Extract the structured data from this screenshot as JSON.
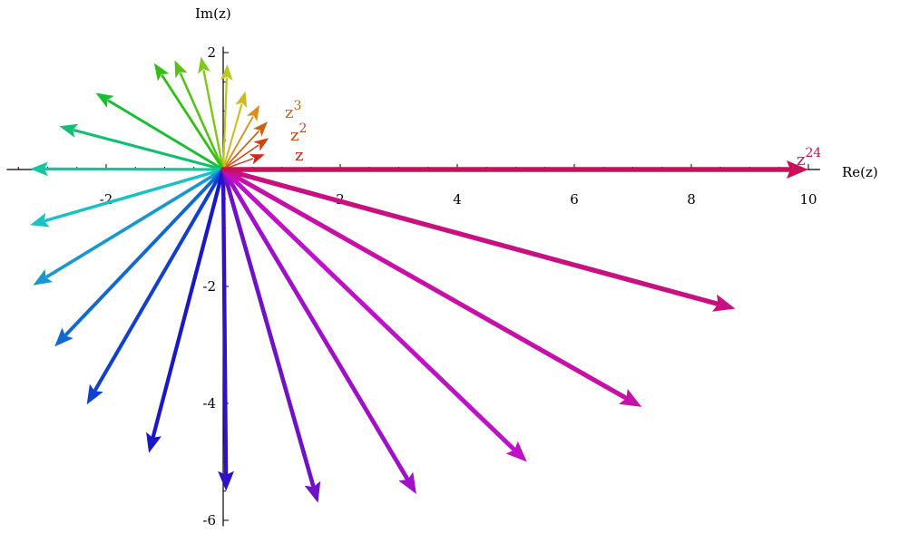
{
  "chart_data": {
    "type": "vector",
    "xlabel": "Re(z)",
    "ylabel": "Im(z)",
    "xlim": [
      -3.7,
      10.2
    ],
    "ylim": [
      -6.1,
      2.1
    ],
    "x_ticks": [
      {
        "value": -2,
        "label": "-2"
      },
      {
        "value": 2,
        "label": "2"
      },
      {
        "value": 4,
        "label": "4"
      },
      {
        "value": 6,
        "label": "6"
      },
      {
        "value": 8,
        "label": "8"
      },
      {
        "value": 10,
        "label": "10"
      }
    ],
    "y_ticks": [
      {
        "value": 2,
        "label": "2"
      },
      {
        "value": -2,
        "label": "-2"
      },
      {
        "value": -4,
        "label": "-4"
      },
      {
        "value": -6,
        "label": "-6"
      }
    ],
    "origin": [
      0,
      0
    ],
    "vectors": [
      {
        "x": 0.71,
        "y": 0.26,
        "color": "#cc2a1a",
        "label": "z"
      },
      {
        "x": 0.78,
        "y": 0.54,
        "color": "#cc4410",
        "label": "z2"
      },
      {
        "x": 0.76,
        "y": 0.82,
        "color": "#d06010",
        "label": "z3"
      },
      {
        "x": 0.62,
        "y": 1.1,
        "color": "#d89018",
        "label": ""
      },
      {
        "x": 0.38,
        "y": 1.34,
        "color": "#d0b820",
        "label": ""
      },
      {
        "x": 0.07,
        "y": 1.8,
        "color": "#bcc820",
        "label": ""
      },
      {
        "x": -0.38,
        "y": 1.93,
        "color": "#80c818",
        "label": ""
      },
      {
        "x": -0.83,
        "y": 1.87,
        "color": "#58c018",
        "label": ""
      },
      {
        "x": -1.18,
        "y": 1.82,
        "color": "#30c010",
        "label": ""
      },
      {
        "x": -2.18,
        "y": 1.31,
        "color": "#18c030",
        "label": ""
      },
      {
        "x": -2.8,
        "y": 0.74,
        "color": "#10c070",
        "label": ""
      },
      {
        "x": -3.3,
        "y": 0.01,
        "color": "#10c8a0",
        "label": ""
      },
      {
        "x": -3.3,
        "y": -0.95,
        "color": "#18c0c8",
        "label": ""
      },
      {
        "x": -3.25,
        "y": -1.98,
        "color": "#1898d0",
        "label": ""
      },
      {
        "x": -2.88,
        "y": -3.03,
        "color": "#1068d0",
        "label": ""
      },
      {
        "x": -2.33,
        "y": -4.02,
        "color": "#1040d0",
        "label": ""
      },
      {
        "x": -1.27,
        "y": -4.85,
        "color": "#1818c8",
        "label": ""
      },
      {
        "x": 0.05,
        "y": -5.5,
        "color": "#3010c8",
        "label": ""
      },
      {
        "x": 1.62,
        "y": -5.7,
        "color": "#7010c8",
        "label": ""
      },
      {
        "x": 3.3,
        "y": -5.55,
        "color": "#a010c8",
        "label": ""
      },
      {
        "x": 5.19,
        "y": -5.0,
        "color": "#c010c8",
        "label": ""
      },
      {
        "x": 7.15,
        "y": -4.06,
        "color": "#c810a8",
        "label": ""
      },
      {
        "x": 8.75,
        "y": -2.38,
        "color": "#c81080",
        "label": ""
      },
      {
        "x": 10.0,
        "y": 0.0,
        "color": "#c8105a",
        "label": "z24"
      }
    ]
  }
}
